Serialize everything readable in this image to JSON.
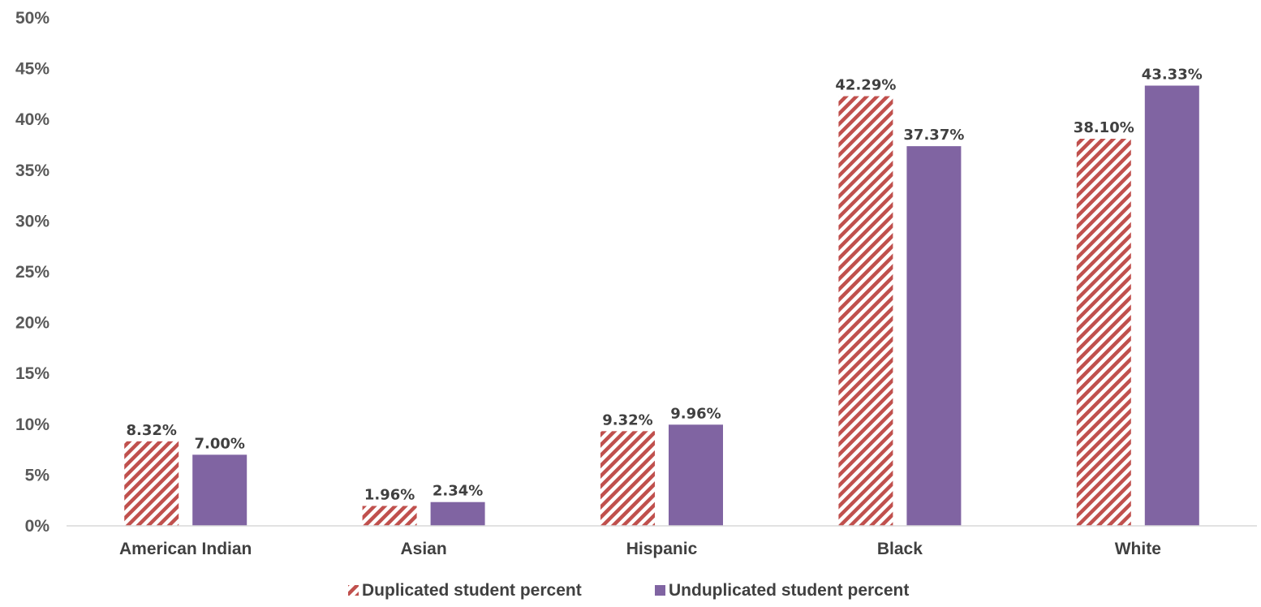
{
  "chart_data": {
    "type": "bar",
    "categories": [
      "American Indian",
      "Asian",
      "Hispanic",
      "Black",
      "White"
    ],
    "series": [
      {
        "name": "Duplicated student percent",
        "values": [
          8.32,
          1.96,
          9.32,
          42.29,
          38.1
        ],
        "labels": [
          "8.32%",
          "1.96%",
          "9.32%",
          "42.29%",
          "38.10%"
        ],
        "color": "#C0504D",
        "pattern": "diagonal-stripes"
      },
      {
        "name": "Unduplicated student percent",
        "values": [
          7.0,
          2.34,
          9.96,
          37.37,
          43.33
        ],
        "labels": [
          "7.00%",
          "2.34%",
          "9.96%",
          "37.37%",
          "43.33%"
        ],
        "color": "#8064A2",
        "pattern": "solid"
      }
    ],
    "ylim": [
      0,
      50
    ],
    "yticks": [
      0,
      5,
      10,
      15,
      20,
      25,
      30,
      35,
      40,
      45,
      50
    ],
    "ytick_labels": [
      "0%",
      "5%",
      "10%",
      "15%",
      "20%",
      "25%",
      "30%",
      "35%",
      "40%",
      "45%",
      "50%"
    ],
    "grid": false,
    "legend_position": "bottom",
    "title": "",
    "xlabel": "",
    "ylabel": ""
  }
}
